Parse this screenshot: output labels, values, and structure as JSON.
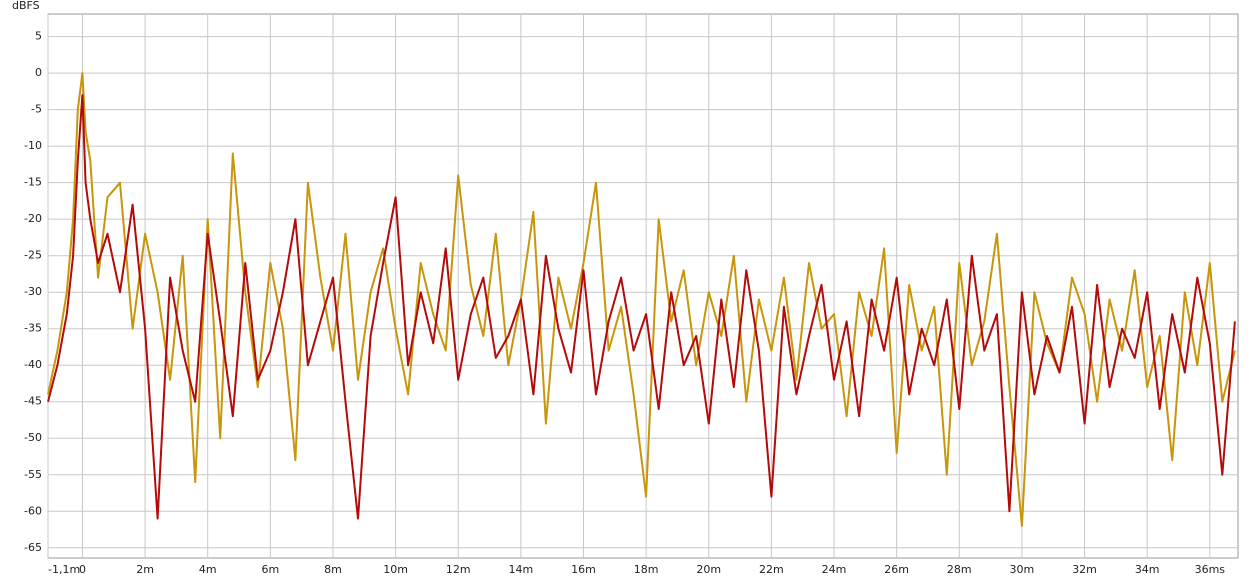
{
  "chart_data": {
    "type": "line",
    "y_label": "dBFS",
    "x": [
      -1.1,
      -0.8,
      -0.5,
      -0.3,
      -0.15,
      0,
      0.1,
      0.25,
      0.5,
      0.8,
      1.2,
      1.6,
      2.0,
      2.4,
      2.8,
      3.2,
      3.6,
      4.0,
      4.4,
      4.8,
      5.2,
      5.6,
      6.0,
      6.4,
      6.8,
      7.2,
      7.6,
      8.0,
      8.4,
      8.8,
      9.2,
      9.6,
      10.0,
      10.4,
      10.8,
      11.2,
      11.6,
      12.0,
      12.4,
      12.8,
      13.2,
      13.6,
      14.0,
      14.4,
      14.8,
      15.2,
      15.6,
      16.0,
      16.4,
      16.8,
      17.2,
      17.6,
      18.0,
      18.4,
      18.8,
      19.2,
      19.6,
      20.0,
      20.4,
      20.8,
      21.2,
      21.6,
      22.0,
      22.4,
      22.8,
      23.2,
      23.6,
      24.0,
      24.4,
      24.8,
      25.2,
      25.6,
      26.0,
      26.4,
      26.8,
      27.2,
      27.6,
      28.0,
      28.4,
      28.8,
      29.2,
      29.6,
      30.0,
      30.4,
      30.8,
      31.2,
      31.6,
      32.0,
      32.4,
      32.8,
      33.2,
      33.6,
      34.0,
      34.4,
      34.8,
      35.2,
      35.6,
      36.0,
      36.4,
      36.8
    ],
    "series": [
      {
        "color": "#c8960a",
        "values": [
          -44,
          -38,
          -30,
          -20,
          -5,
          0,
          -8,
          -12,
          -28,
          -17,
          -15,
          -35,
          -22,
          -30,
          -42,
          -25,
          -56,
          -20,
          -50,
          -11,
          -30,
          -43,
          -26,
          -35,
          -53,
          -15,
          -28,
          -38,
          -22,
          -42,
          -30,
          -24,
          -35,
          -44,
          -26,
          -33,
          -38,
          -14,
          -29,
          -36,
          -22,
          -40,
          -31,
          -19,
          -48,
          -28,
          -35,
          -26,
          -15,
          -38,
          -32,
          -44,
          -58,
          -20,
          -34,
          -27,
          -40,
          -30,
          -36,
          -25,
          -45,
          -31,
          -38,
          -28,
          -42,
          -26,
          -35,
          -33,
          -47,
          -30,
          -36,
          -24,
          -52,
          -29,
          -38,
          -32,
          -55,
          -26,
          -40,
          -34,
          -22,
          -43,
          -62,
          -30,
          -37,
          -41,
          -28,
          -33,
          -45,
          -31,
          -38,
          -27,
          -43,
          -36,
          -53,
          -30,
          -40,
          -26,
          -45,
          -38
        ]
      },
      {
        "color": "#b40a0a",
        "values": [
          -45,
          -40,
          -33,
          -25,
          -12,
          -3,
          -15,
          -20,
          -26,
          -22,
          -30,
          -18,
          -35,
          -61,
          -28,
          -38,
          -45,
          -22,
          -34,
          -47,
          -26,
          -42,
          -38,
          -30,
          -20,
          -40,
          -34,
          -28,
          -45,
          -61,
          -36,
          -26,
          -17,
          -40,
          -30,
          -37,
          -24,
          -42,
          -33,
          -28,
          -39,
          -36,
          -31,
          -44,
          -25,
          -35,
          -41,
          -27,
          -44,
          -34,
          -28,
          -38,
          -33,
          -46,
          -30,
          -40,
          -36,
          -48,
          -31,
          -43,
          -27,
          -38,
          -58,
          -32,
          -44,
          -36,
          -29,
          -42,
          -34,
          -47,
          -31,
          -38,
          -28,
          -44,
          -35,
          -40,
          -31,
          -46,
          -25,
          -38,
          -33,
          -60,
          -30,
          -44,
          -36,
          -41,
          -32,
          -48,
          -29,
          -43,
          -35,
          -39,
          -30,
          -46,
          -33,
          -41,
          -28,
          -37,
          -55,
          -34
        ]
      }
    ],
    "xlim": [
      -1.1,
      36.9
    ],
    "ylim": [
      -66.4,
      8.1
    ],
    "xticks": [
      {
        "value": -1.1,
        "label": "-1,1m"
      },
      0,
      {
        "value": 2,
        "label": "2m"
      },
      {
        "value": 4,
        "label": "4m"
      },
      {
        "value": 6,
        "label": "6m"
      },
      {
        "value": 8,
        "label": "8m"
      },
      {
        "value": 10,
        "label": "10m"
      },
      {
        "value": 12,
        "label": "12m"
      },
      {
        "value": 14,
        "label": "14m"
      },
      {
        "value": 16,
        "label": "16m"
      },
      {
        "value": 18,
        "label": "18m"
      },
      {
        "value": 20,
        "label": "20m"
      },
      {
        "value": 22,
        "label": "22m"
      },
      {
        "value": 24,
        "label": "24m"
      },
      {
        "value": 26,
        "label": "26m"
      },
      {
        "value": 28,
        "label": "28m"
      },
      {
        "value": 30,
        "label": "30m"
      },
      {
        "value": 32,
        "label": "32m"
      },
      {
        "value": 34,
        "label": "34m"
      },
      {
        "value": 36,
        "label": "36ms"
      }
    ],
    "yticks": [
      5,
      0,
      -5,
      -10,
      -15,
      -20,
      -25,
      -30,
      -35,
      -40,
      -45,
      -50,
      -55,
      -60,
      -65
    ],
    "grid": true
  }
}
